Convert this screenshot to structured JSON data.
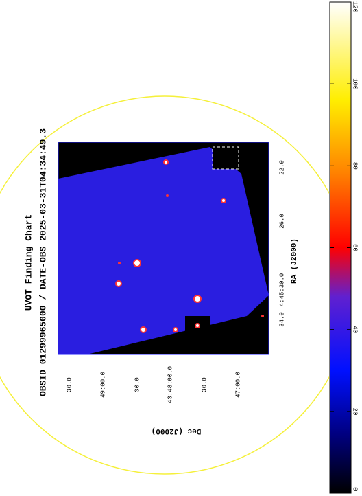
{
  "chart_data": {
    "type": "image",
    "title": "UVOT Finding Chart",
    "subtitle": "OBSID 01299965000 / DATE-OBS 2025-03-31T04:34:49.3",
    "xlabel": "RA (J2000)",
    "ylabel": "Dec (J2000)",
    "xtick_labels": [
      "34.0",
      "4:45:30.0",
      "26.0",
      "22.0"
    ],
    "ytick_labels": [
      "30.0",
      "49:00.0",
      "30.0",
      "43:48:00.0",
      "30.0",
      "47:00.0"
    ],
    "colorbar": {
      "lim": [
        0,
        120
      ],
      "ticks": [
        0,
        20,
        40,
        60,
        80,
        100,
        120
      ]
    }
  }
}
